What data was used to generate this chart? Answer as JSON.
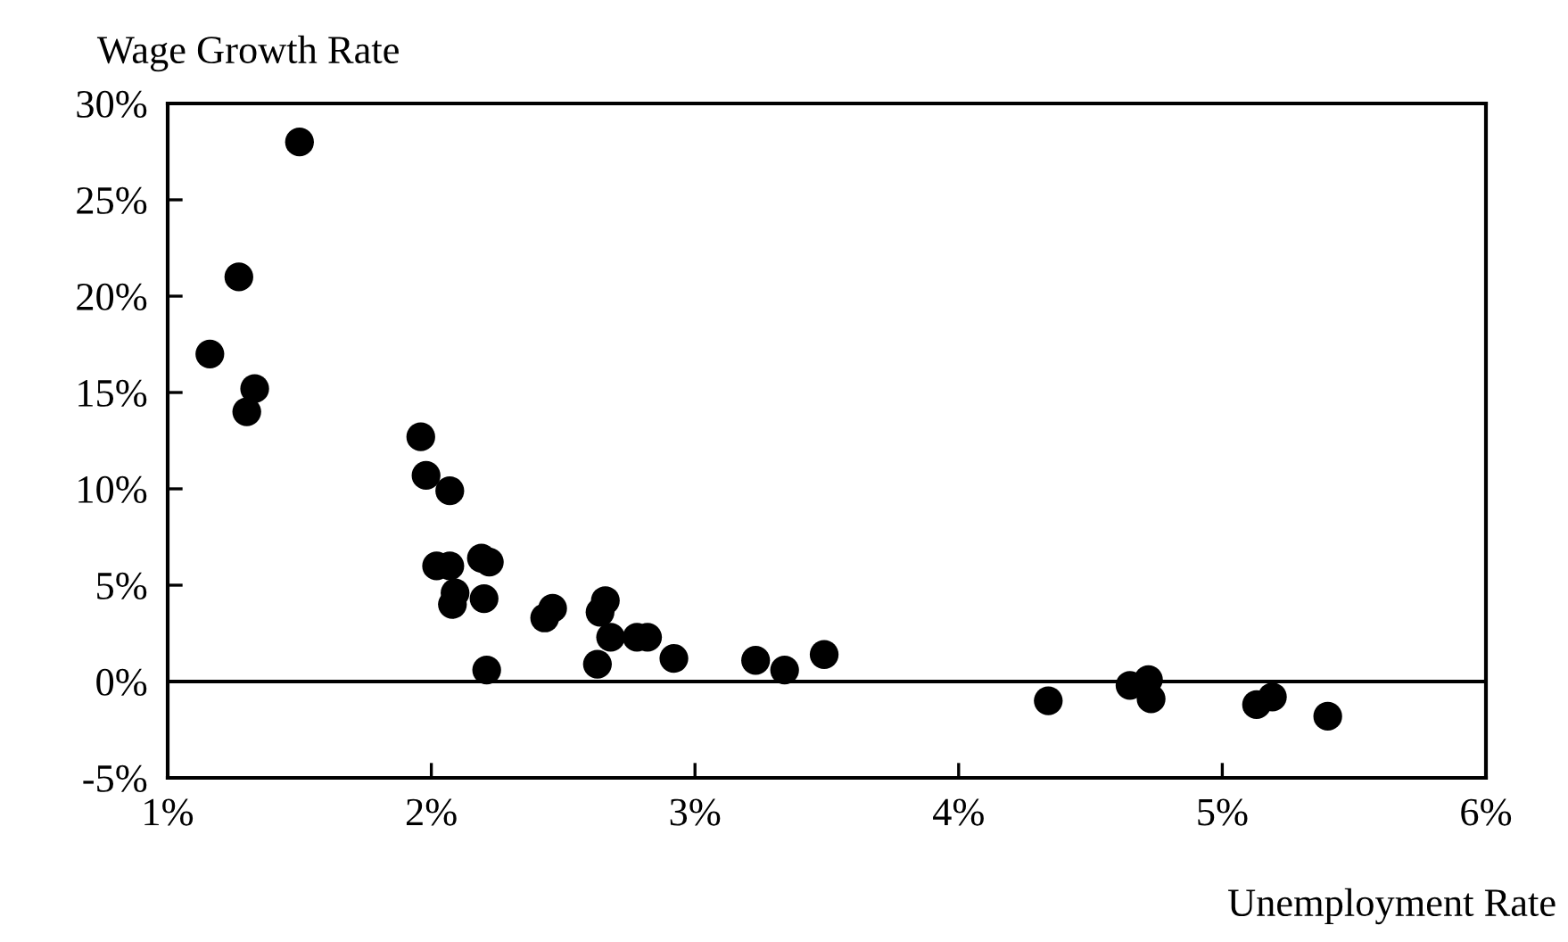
{
  "chart_data": {
    "type": "scatter",
    "xlabel": "Unemployment Rate",
    "ylabel": "Wage Growth Rate",
    "x": [
      1.5,
      1.27,
      1.16,
      1.33,
      1.3,
      1.96,
      1.98,
      2.07,
      2.02,
      2.07,
      2.19,
      2.22,
      2.09,
      2.08,
      2.2,
      2.21,
      2.43,
      2.46,
      2.64,
      2.66,
      2.68,
      2.78,
      2.82,
      2.63,
      2.92,
      3.23,
      3.34,
      3.49,
      4.34,
      4.65,
      4.72,
      4.73,
      5.13,
      5.19,
      5.4
    ],
    "values": [
      28.0,
      21.0,
      17.0,
      15.2,
      14.0,
      12.7,
      10.7,
      9.9,
      6.0,
      6.0,
      6.4,
      6.2,
      4.6,
      4.0,
      4.3,
      0.6,
      3.3,
      3.8,
      3.6,
      4.2,
      2.3,
      2.3,
      2.3,
      0.9,
      1.2,
      1.1,
      0.6,
      1.4,
      -1.0,
      -0.2,
      0.1,
      -0.9,
      -1.2,
      -0.8,
      -1.8
    ],
    "color": "#000000",
    "marker": "circle",
    "xlim": [
      1,
      6
    ],
    "ylim": [
      -5,
      30
    ],
    "xticks": [
      {
        "value": 1,
        "label": "1%"
      },
      {
        "value": 2,
        "label": "2%"
      },
      {
        "value": 3,
        "label": "3%"
      },
      {
        "value": 4,
        "label": "4%"
      },
      {
        "value": 5,
        "label": "5%"
      },
      {
        "value": 6,
        "label": "6%"
      }
    ],
    "yticks": [
      {
        "value": -5,
        "label": "-5%"
      },
      {
        "value": 0,
        "label": "0%"
      },
      {
        "value": 5,
        "label": "5%"
      },
      {
        "value": 10,
        "label": "10%"
      },
      {
        "value": 15,
        "label": "15%"
      },
      {
        "value": 20,
        "label": "20%"
      },
      {
        "value": 25,
        "label": "25%"
      },
      {
        "value": 30,
        "label": "30%"
      }
    ],
    "ref_lines": [
      {
        "axis": "y",
        "value": 0,
        "color": "#000000",
        "line_style": "solid"
      }
    ],
    "grid": false,
    "legend": false
  }
}
